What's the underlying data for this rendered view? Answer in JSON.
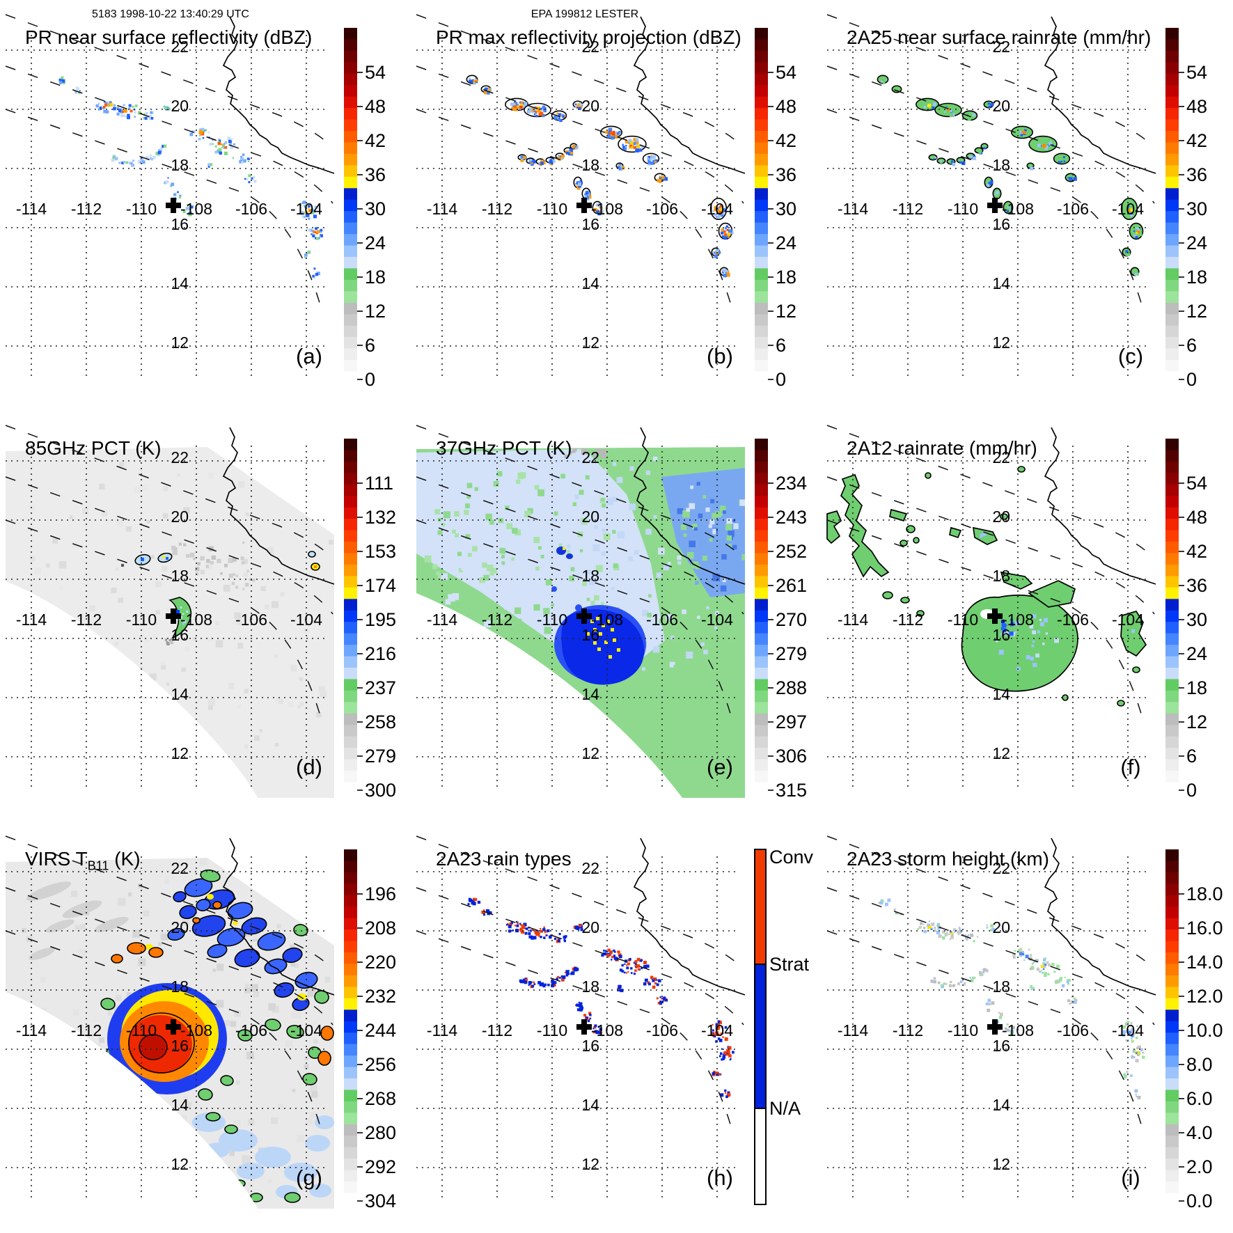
{
  "header": {
    "left": "5183 1998-10-22 13:40:29 UTC",
    "right": "EPA 199812 LESTER"
  },
  "axes": {
    "lon_labels": [
      "-114",
      "-112",
      "-110",
      "-108",
      "-106",
      "-104"
    ],
    "lat_labels": [
      "22",
      "20",
      "18",
      "16",
      "14",
      "12"
    ]
  },
  "marker": {
    "glyph": "+",
    "name": "storm-center"
  },
  "colors": {
    "conv": "#f23b00",
    "strat": "#0022dd",
    "na": "#ffffff",
    "swath_gray": "#ebebeb",
    "data_green": "#6fce6f",
    "data_blue": "#2060ff",
    "data_lightblue": "#9cc4fc",
    "data_yellow": "#ffee00",
    "data_orange": "#ff8800",
    "palette_top_to_bottom": [
      "#330000",
      "#520000",
      "#6e0000",
      "#8a0000",
      "#a60000",
      "#c20000",
      "#de0f00",
      "#f52600",
      "#ff3d00",
      "#ff5c00",
      "#ff7b00",
      "#ff9a00",
      "#ffc400",
      "#fff200",
      "#0020d0",
      "#0038f8",
      "#2060ff",
      "#4585ff",
      "#6da6ff",
      "#9cc4fc",
      "#c9ddfa",
      "#62cc62",
      "#7fd87f",
      "#9ce49c",
      "#bdbdbd",
      "#c9c9c9",
      "#d6d6d6",
      "#e3e3e3",
      "#eeeeee",
      "#f7f7f7",
      "#ffffff"
    ]
  },
  "panels": [
    {
      "id": "a",
      "letter": "(a)",
      "title": "PR near surface reflectivity (dBZ)",
      "title_sub": "",
      "title_post": "",
      "colorbar": {
        "kind": "gradient",
        "tick_labels": [
          "54",
          "48",
          "42",
          "36",
          "30",
          "24",
          "18",
          "12",
          "6",
          "0"
        ]
      }
    },
    {
      "id": "b",
      "letter": "(b)",
      "title": "PR max reflectivity projection (dBZ)",
      "title_sub": "",
      "title_post": "",
      "colorbar": {
        "kind": "gradient",
        "tick_labels": [
          "54",
          "48",
          "42",
          "36",
          "30",
          "24",
          "18",
          "12",
          "6",
          "0"
        ]
      }
    },
    {
      "id": "c",
      "letter": "(c)",
      "title": "2A25 near surface rainrate (mm/hr)",
      "title_sub": "",
      "title_post": "",
      "colorbar": {
        "kind": "gradient",
        "tick_labels": [
          "54",
          "48",
          "42",
          "36",
          "30",
          "24",
          "18",
          "12",
          "6",
          "0"
        ]
      }
    },
    {
      "id": "d",
      "letter": "(d)",
      "title": "85GHz PCT (K)",
      "title_sub": "",
      "title_post": "",
      "colorbar": {
        "kind": "gradient",
        "tick_labels": [
          "111",
          "132",
          "153",
          "174",
          "195",
          "216",
          "237",
          "258",
          "279",
          "300"
        ]
      }
    },
    {
      "id": "e",
      "letter": "(e)",
      "title": "37GHz PCT (K)",
      "title_sub": "",
      "title_post": "",
      "colorbar": {
        "kind": "gradient",
        "tick_labels": [
          "234",
          "243",
          "252",
          "261",
          "270",
          "279",
          "288",
          "297",
          "306",
          "315"
        ]
      }
    },
    {
      "id": "f",
      "letter": "(f)",
      "title": "2A12 rainrate (mm/hr)",
      "title_sub": "",
      "title_post": "",
      "colorbar": {
        "kind": "gradient",
        "tick_labels": [
          "54",
          "48",
          "42",
          "36",
          "30",
          "24",
          "18",
          "12",
          "6",
          "0"
        ]
      }
    },
    {
      "id": "g",
      "letter": "(g)",
      "title": "VIRS T",
      "title_sub": "B11",
      "title_post": " (K)",
      "colorbar": {
        "kind": "gradient",
        "tick_labels": [
          "196",
          "208",
          "220",
          "232",
          "244",
          "256",
          "268",
          "280",
          "292",
          "304"
        ]
      }
    },
    {
      "id": "h",
      "letter": "(h)",
      "title": "2A23 rain types",
      "title_sub": "",
      "title_post": "",
      "colorbar": {
        "kind": "categories",
        "categories": [
          {
            "label": "Conv",
            "color": "#f23b00"
          },
          {
            "label": "Strat",
            "color": "#0022dd"
          },
          {
            "label": "N/A",
            "color": "#ffffff"
          }
        ]
      }
    },
    {
      "id": "i",
      "letter": "(i)",
      "title": "2A23 storm height (km)",
      "title_sub": "",
      "title_post": "",
      "colorbar": {
        "kind": "gradient",
        "tick_labels": [
          "18.0",
          "16.0",
          "14.0",
          "12.0",
          "10.0",
          "8.0",
          "6.0",
          "4.0",
          "2.0",
          "0.0"
        ]
      }
    }
  ],
  "chart_data": [
    {
      "type": "heatmap",
      "title": "PR near surface reflectivity (dBZ)",
      "panel": "(a)",
      "x_ticks": [
        -114,
        -112,
        -110,
        -108,
        -106,
        -104
      ],
      "y_ticks": [
        22,
        20,
        18,
        16,
        14,
        12
      ],
      "colorbar_ticks": [
        54,
        48,
        42,
        36,
        30,
        24,
        18,
        12,
        6,
        0
      ],
      "legend_position": "right",
      "grid": true
    },
    {
      "type": "heatmap",
      "title": "PR max reflectivity projection (dBZ)",
      "panel": "(b)",
      "x_ticks": [
        -114,
        -112,
        -110,
        -108,
        -106,
        -104
      ],
      "y_ticks": [
        22,
        20,
        18,
        16,
        14,
        12
      ],
      "colorbar_ticks": [
        54,
        48,
        42,
        36,
        30,
        24,
        18,
        12,
        6,
        0
      ],
      "legend_position": "right",
      "grid": true
    },
    {
      "type": "heatmap",
      "title": "2A25 near surface rainrate (mm/hr)",
      "panel": "(c)",
      "x_ticks": [
        -114,
        -112,
        -110,
        -108,
        -106,
        -104
      ],
      "y_ticks": [
        22,
        20,
        18,
        16,
        14,
        12
      ],
      "colorbar_ticks": [
        54,
        48,
        42,
        36,
        30,
        24,
        18,
        12,
        6,
        0
      ],
      "legend_position": "right",
      "grid": true
    },
    {
      "type": "heatmap",
      "title": "85GHz PCT (K)",
      "panel": "(d)",
      "x_ticks": [
        -114,
        -112,
        -110,
        -108,
        -106,
        -104
      ],
      "y_ticks": [
        22,
        20,
        18,
        16,
        14,
        12
      ],
      "colorbar_ticks": [
        111,
        132,
        153,
        174,
        195,
        216,
        237,
        258,
        279,
        300
      ],
      "legend_position": "right",
      "grid": true
    },
    {
      "type": "heatmap",
      "title": "37GHz PCT (K)",
      "panel": "(e)",
      "x_ticks": [
        -114,
        -112,
        -110,
        -108,
        -106,
        -104
      ],
      "y_ticks": [
        22,
        20,
        18,
        16,
        14,
        12
      ],
      "colorbar_ticks": [
        234,
        243,
        252,
        261,
        270,
        279,
        288,
        297,
        306,
        315
      ],
      "legend_position": "right",
      "grid": true
    },
    {
      "type": "heatmap",
      "title": "2A12 rainrate (mm/hr)",
      "panel": "(f)",
      "x_ticks": [
        -114,
        -112,
        -110,
        -108,
        -106,
        -104
      ],
      "y_ticks": [
        22,
        20,
        18,
        16,
        14,
        12
      ],
      "colorbar_ticks": [
        54,
        48,
        42,
        36,
        30,
        24,
        18,
        12,
        6,
        0
      ],
      "legend_position": "right",
      "grid": true
    },
    {
      "type": "heatmap",
      "title": "VIRS TB11 (K)",
      "panel": "(g)",
      "x_ticks": [
        -114,
        -112,
        -110,
        -108,
        -106,
        -104
      ],
      "y_ticks": [
        22,
        20,
        18,
        16,
        14,
        12
      ],
      "colorbar_ticks": [
        196,
        208,
        220,
        232,
        244,
        256,
        268,
        280,
        292,
        304
      ],
      "legend_position": "right",
      "grid": true
    },
    {
      "type": "heatmap",
      "title": "2A23 rain types",
      "panel": "(h)",
      "x_ticks": [
        -114,
        -112,
        -110,
        -108,
        -106,
        -104
      ],
      "y_ticks": [
        22,
        20,
        18,
        16,
        14,
        12
      ],
      "categories": [
        "Conv",
        "Strat",
        "N/A"
      ],
      "legend_position": "right",
      "grid": true
    },
    {
      "type": "heatmap",
      "title": "2A23 storm height (km)",
      "panel": "(i)",
      "x_ticks": [
        -114,
        -112,
        -110,
        -108,
        -106,
        -104
      ],
      "y_ticks": [
        22,
        20,
        18,
        16,
        14,
        12
      ],
      "colorbar_ticks": [
        18.0,
        16.0,
        14.0,
        12.0,
        10.0,
        8.0,
        6.0,
        4.0,
        2.0,
        0.0
      ],
      "legend_position": "right",
      "grid": true
    }
  ]
}
